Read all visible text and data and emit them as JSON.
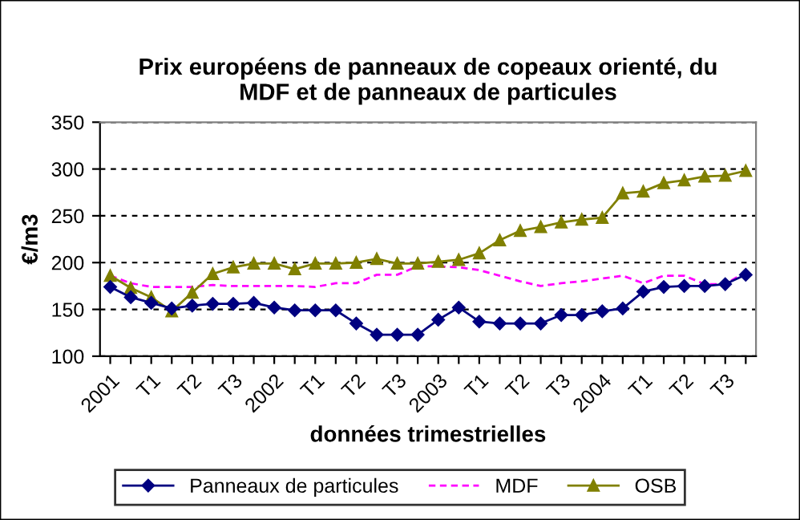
{
  "chart_data": {
    "type": "line",
    "title": "Prix européens de panneaux de copeaux orienté, du\nMDF et de panneaux de particules",
    "xlabel": "données trimestrielles",
    "ylabel": "€/m3",
    "categories": [
      "2001",
      null,
      "T1",
      null,
      "T2",
      null,
      "T3",
      null,
      "2002",
      null,
      "T1",
      null,
      "T2",
      null,
      "T3",
      null,
      "2003",
      null,
      "T1",
      null,
      "T2",
      null,
      "T3",
      null,
      "2004",
      null,
      "T1",
      null,
      "T2",
      null,
      "T3",
      null
    ],
    "series": [
      {
        "name": "Panneaux de particules",
        "color": "#000080",
        "marker": "diamond",
        "line_style": "solid",
        "values": [
          174,
          163,
          157,
          151,
          154,
          156,
          156,
          157,
          152,
          149,
          149,
          149,
          135,
          123,
          123,
          123,
          139,
          152,
          137,
          135,
          135,
          135,
          144,
          144,
          148,
          151,
          169,
          174,
          175,
          175,
          177,
          187
        ]
      },
      {
        "name": "MDF",
        "color": "#ff00ff",
        "marker": "none",
        "line_style": "dashed",
        "values": [
          186,
          178,
          174,
          174,
          174,
          176,
          175,
          175,
          175,
          175,
          174,
          178,
          178,
          187,
          187,
          196,
          196,
          195,
          192,
          186,
          180,
          175,
          178,
          180,
          183,
          186,
          178,
          186,
          186,
          177,
          177,
          190
        ]
      },
      {
        "name": "OSB",
        "color": "#808000",
        "marker": "triangle",
        "line_style": "solid",
        "values": [
          186,
          173,
          163,
          148,
          168,
          188,
          195,
          199,
          199,
          193,
          199,
          199,
          200,
          204,
          199,
          199,
          201,
          203,
          210,
          224,
          234,
          238,
          243,
          246,
          248,
          274,
          276,
          285,
          288,
          292,
          293,
          298
        ]
      }
    ],
    "ylim": [
      100,
      350
    ],
    "yticks": [
      100,
      150,
      200,
      250,
      300,
      350
    ],
    "grid": "y",
    "legend": "bottom"
  }
}
